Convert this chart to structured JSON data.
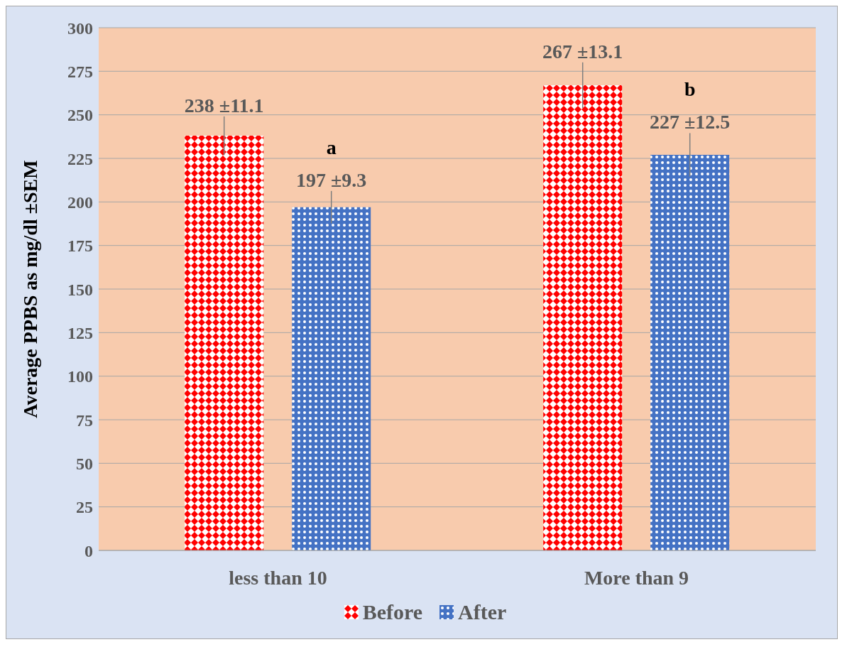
{
  "chart_data": {
    "type": "bar",
    "ylabel": "Average PPBS as mg/dl ±SEM",
    "categories": [
      "less than 10",
      "More than 9"
    ],
    "series": [
      {
        "name": "Before",
        "color": "#ff0000",
        "values": [
          238,
          267
        ],
        "errors": [
          11.1,
          13.1
        ],
        "value_labels": [
          "238 ±11.1",
          "267 ±13.1"
        ]
      },
      {
        "name": "After",
        "color": "#4472c4",
        "values": [
          197,
          227
        ],
        "errors": [
          9.3,
          12.5
        ],
        "value_labels": [
          "197 ±9.3",
          "227 ±12.5"
        ]
      }
    ],
    "annotations": [
      "a",
      "b"
    ],
    "ylim": [
      0,
      300
    ],
    "yticks": [
      0,
      25,
      50,
      75,
      100,
      125,
      150,
      175,
      200,
      225,
      250,
      275,
      300
    ],
    "grid": "y",
    "legend": "bottom"
  }
}
